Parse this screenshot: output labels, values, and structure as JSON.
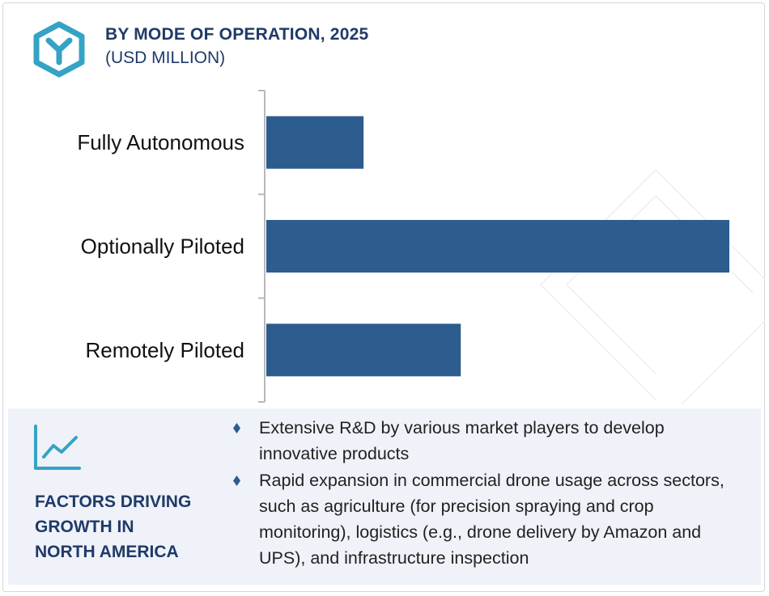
{
  "header": {
    "title": "BY MODE OF OPERATION, 2025",
    "subtitle": "(USD MILLION)",
    "logo_icon": "hexagon-y-logo-icon"
  },
  "colors": {
    "bar": "#2d5c8e",
    "title": "#1f3a68",
    "logo": "#35a3c6",
    "panel_bg": "#eff2f8",
    "axis": "#b8b8b8"
  },
  "chart_data": {
    "type": "bar",
    "orientation": "horizontal",
    "categories": [
      "Fully Autonomous",
      "Optionally Piloted",
      "Remotely Piloted"
    ],
    "values": [
      21,
      100,
      42
    ],
    "xlim": [
      0,
      100
    ],
    "title": "BY MODE OF OPERATION, 2025",
    "subtitle": "(USD MILLION)",
    "xlabel": "",
    "ylabel": "",
    "grid": false,
    "legend": "none",
    "data_labels": false
  },
  "factors": {
    "icon": "trend-chart-icon",
    "heading": "FACTORS DRIVING\nGROWTH IN\nNORTH AMERICA",
    "bullets": [
      "Extensive R&D by various market players to develop innovative products",
      "Rapid expansion in commercial drone usage across sectors, such as agriculture (for precision spraying and crop monitoring), logistics (e.g., drone delivery by Amazon and UPS), and infrastructure inspection"
    ]
  }
}
